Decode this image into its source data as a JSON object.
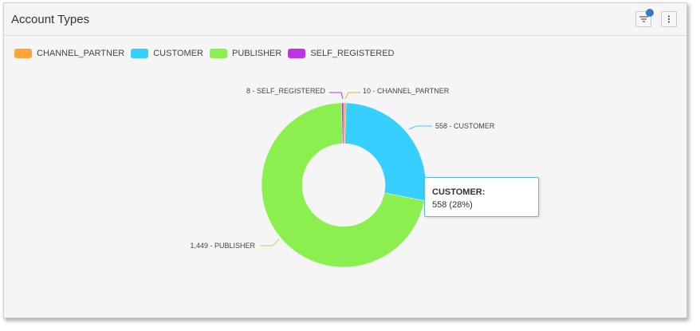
{
  "card": {
    "title": "Account Types",
    "filter_icon": "filter-icon",
    "menu_icon": "more-vertical-icon"
  },
  "chart_data": {
    "type": "pie",
    "variant": "donut",
    "categories": [
      "CHANNEL_PARTNER",
      "CUSTOMER",
      "PUBLISHER",
      "SELF_REGISTERED"
    ],
    "values": [
      10,
      558,
      1449,
      8
    ],
    "colors": [
      "#ffa43a",
      "#36cfff",
      "#8bf04f",
      "#bd34e6"
    ],
    "slice_labels": [
      "10 - CHANNEL_PARTNER",
      "558 - CUSTOMER",
      "1,449 - PUBLISHER",
      "8 - SELF_REGISTERED"
    ],
    "legend_position": "top-left"
  },
  "tooltip": {
    "title": "CUSTOMER:",
    "value": "558 (28%)",
    "border_color": "#5bbbe8"
  }
}
